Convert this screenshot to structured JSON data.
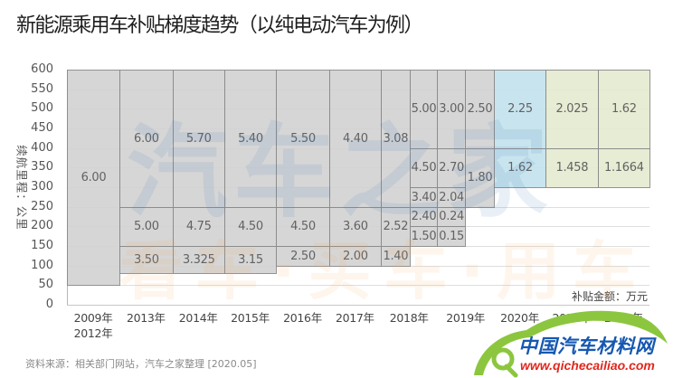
{
  "title": "新能源乘用车补贴梯度趋势（以纯电动汽车为例）",
  "footer": "资料来源：相关部门网站，汽车之家整理 [2020.05]",
  "watermark": {
    "main": "汽车之家",
    "sub": "看车·买车·用车"
  },
  "logo": {
    "name": "中国汽车材料网",
    "url": "www.qichecailiao.com"
  },
  "colors": {
    "gray": "#d3d3d3",
    "blue": "#c4e3ee",
    "green": "#e5ebd1",
    "border": "#8c8c8c",
    "logo_green": "#8cc63f",
    "logo_blue": "#1658b2",
    "logo_red": "#e2271d"
  },
  "chart_data": {
    "type": "bar",
    "title": "新能源乘用车补贴梯度趋势（以纯电动汽车为例）",
    "xlabel": "",
    "ylabel": "续航里程：公里",
    "value_unit_note": "补贴金额：万元",
    "ylim": [
      0,
      600
    ],
    "yticks": [
      0,
      50,
      100,
      150,
      200,
      250,
      300,
      350,
      400,
      450,
      500,
      550,
      600
    ],
    "grid": true,
    "categories": [
      "2009年\n2012年",
      "2013年",
      "2014年",
      "2015年",
      "2016年",
      "2017年",
      "2018年",
      "2019年",
      "2020年",
      "2021年",
      "2022年"
    ],
    "bars": [
      {
        "category": 0,
        "color": "gray",
        "segments": [
          {
            "range_km": [
              50,
              600
            ],
            "subsidy": "6.00"
          }
        ]
      },
      {
        "category": 1,
        "color": "gray",
        "segments": [
          {
            "range_km": [
              80,
              150
            ],
            "subsidy": "3.50"
          },
          {
            "range_km": [
              150,
              250
            ],
            "subsidy": "5.00"
          },
          {
            "range_km": [
              250,
              600
            ],
            "subsidy": "6.00"
          }
        ]
      },
      {
        "category": 2,
        "color": "gray",
        "segments": [
          {
            "range_km": [
              80,
              150
            ],
            "subsidy": "3.325"
          },
          {
            "range_km": [
              150,
              250
            ],
            "subsidy": "4.75"
          },
          {
            "range_km": [
              250,
              600
            ],
            "subsidy": "5.70"
          }
        ]
      },
      {
        "category": 3,
        "color": "gray",
        "segments": [
          {
            "range_km": [
              80,
              150
            ],
            "subsidy": "3.15"
          },
          {
            "range_km": [
              150,
              250
            ],
            "subsidy": "4.50"
          },
          {
            "range_km": [
              250,
              600
            ],
            "subsidy": "5.40"
          }
        ]
      },
      {
        "category": 4,
        "color": "gray",
        "segments": [
          {
            "range_km": [
              100,
              150
            ],
            "subsidy": "2.50"
          },
          {
            "range_km": [
              150,
              250
            ],
            "subsidy": "4.50"
          },
          {
            "range_km": [
              250,
              600
            ],
            "subsidy": "5.50"
          }
        ]
      },
      {
        "category": 5,
        "color": "gray",
        "segments": [
          {
            "range_km": [
              100,
              150
            ],
            "subsidy": "2.00"
          },
          {
            "range_km": [
              150,
              250
            ],
            "subsidy": "3.60"
          },
          {
            "range_km": [
              250,
              600
            ],
            "subsidy": "4.40"
          }
        ]
      },
      {
        "category": 6,
        "color": "gray",
        "segments": [
          {
            "range_km": [
              100,
              150
            ],
            "subsidy": "1.40"
          },
          {
            "range_km": [
              150,
              250
            ],
            "subsidy": "2.52"
          },
          {
            "range_km": [
              250,
              600
            ],
            "subsidy": "3.08"
          }
        ]
      },
      {
        "category": 6,
        "color": "gray",
        "segments": [
          {
            "range_km": [
              150,
              200
            ],
            "subsidy": "1.50"
          },
          {
            "range_km": [
              200,
              250
            ],
            "subsidy": "2.40"
          },
          {
            "range_km": [
              250,
              300
            ],
            "subsidy": "3.40"
          },
          {
            "range_km": [
              300,
              400
            ],
            "subsidy": "4.50"
          },
          {
            "range_km": [
              400,
              600
            ],
            "subsidy": "5.00"
          }
        ]
      },
      {
        "category": 7,
        "color": "gray",
        "segments": [
          {
            "range_km": [
              150,
              200
            ],
            "subsidy": "0.15"
          },
          {
            "range_km": [
              200,
              250
            ],
            "subsidy": "0.24"
          },
          {
            "range_km": [
              250,
              300
            ],
            "subsidy": "2.04"
          },
          {
            "range_km": [
              300,
              400
            ],
            "subsidy": "2.70"
          },
          {
            "range_km": [
              400,
              600
            ],
            "subsidy": "3.00"
          }
        ]
      },
      {
        "category": 7,
        "color": "gray",
        "segments": [
          {
            "range_km": [
              250,
              400
            ],
            "subsidy": "1.80"
          },
          {
            "range_km": [
              400,
              600
            ],
            "subsidy": "2.50"
          }
        ]
      },
      {
        "category": 8,
        "color": "blue",
        "segments": [
          {
            "range_km": [
              300,
              400
            ],
            "subsidy": "1.62"
          },
          {
            "range_km": [
              400,
              600
            ],
            "subsidy": "2.25"
          }
        ]
      },
      {
        "category": 9,
        "color": "green",
        "segments": [
          {
            "range_km": [
              300,
              400
            ],
            "subsidy": "1.458"
          },
          {
            "range_km": [
              400,
              600
            ],
            "subsidy": "2.025"
          }
        ]
      },
      {
        "category": 10,
        "color": "green",
        "segments": [
          {
            "range_km": [
              300,
              400
            ],
            "subsidy": "1.1664"
          },
          {
            "range_km": [
              400,
              600
            ],
            "subsidy": "1.62"
          }
        ]
      }
    ]
  }
}
